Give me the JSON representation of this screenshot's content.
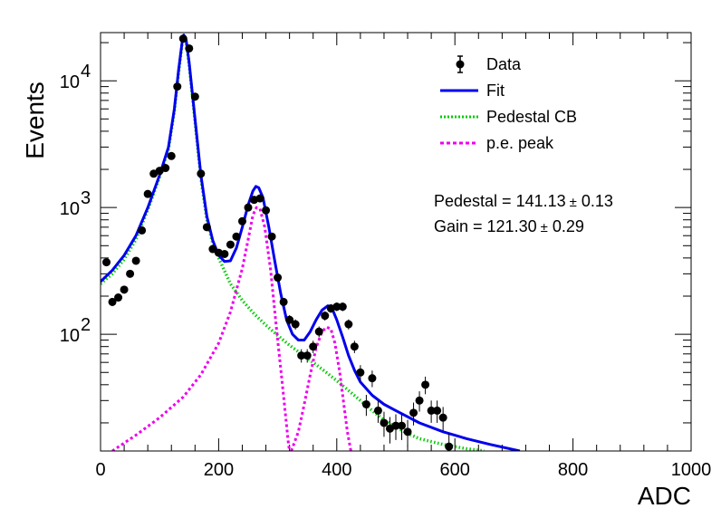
{
  "chart_data": {
    "type": "scatter",
    "title": "",
    "xlabel": "ADC",
    "ylabel": "Events",
    "xlim": [
      0,
      1000
    ],
    "ylim": [
      12,
      24000
    ],
    "yscale": "log",
    "grid": false,
    "legend_position": "top-right",
    "x_ticks": [
      0,
      200,
      400,
      600,
      800,
      1000
    ],
    "x_tick_labels": [
      "0",
      "200",
      "400",
      "600",
      "800",
      "1000"
    ],
    "y_ticks": [
      100,
      1000,
      10000
    ],
    "y_tick_labels": [
      "10",
      "10",
      "10"
    ],
    "y_tick_exponents": [
      "2",
      "3",
      "4"
    ],
    "legend": [
      {
        "label": "Data",
        "marker": "point-errorbar",
        "color": "#000000"
      },
      {
        "label": "Fit",
        "marker": "solid-line",
        "color": "#0000ee"
      },
      {
        "label": "Pedestal CB",
        "marker": "dotted-line",
        "color": "#00cc00"
      },
      {
        "label": "p.e. peak",
        "marker": "dashed-line",
        "color": "#ee00ee"
      }
    ],
    "annotations": [
      {
        "prefix": "Pedestal = 141.13",
        "pm": "±",
        "suffix": " 0.13"
      },
      {
        "prefix": "Gain = 121.30",
        "pm": "±",
        "suffix": " 0.29"
      }
    ],
    "series": [
      {
        "name": "Data",
        "kind": "points",
        "color": "#000000",
        "points": [
          {
            "x": 10,
            "y": 370
          },
          {
            "x": 20,
            "y": 180
          },
          {
            "x": 30,
            "y": 195
          },
          {
            "x": 40,
            "y": 225
          },
          {
            "x": 50,
            "y": 300
          },
          {
            "x": 60,
            "y": 380
          },
          {
            "x": 70,
            "y": 660
          },
          {
            "x": 80,
            "y": 1280
          },
          {
            "x": 90,
            "y": 1850
          },
          {
            "x": 100,
            "y": 1950
          },
          {
            "x": 110,
            "y": 2050
          },
          {
            "x": 120,
            "y": 2550
          },
          {
            "x": 130,
            "y": 9000
          },
          {
            "x": 140,
            "y": 21500
          },
          {
            "x": 150,
            "y": 18000
          },
          {
            "x": 160,
            "y": 7500
          },
          {
            "x": 170,
            "y": 1850
          },
          {
            "x": 180,
            "y": 700
          },
          {
            "x": 190,
            "y": 470
          },
          {
            "x": 200,
            "y": 440
          },
          {
            "x": 210,
            "y": 430
          },
          {
            "x": 220,
            "y": 510
          },
          {
            "x": 230,
            "y": 590
          },
          {
            "x": 240,
            "y": 780
          },
          {
            "x": 250,
            "y": 1000
          },
          {
            "x": 260,
            "y": 1150
          },
          {
            "x": 270,
            "y": 1180
          },
          {
            "x": 280,
            "y": 950
          },
          {
            "x": 290,
            "y": 590
          },
          {
            "x": 300,
            "y": 280
          },
          {
            "x": 310,
            "y": 180
          },
          {
            "x": 320,
            "y": 130
          },
          {
            "x": 330,
            "y": 120
          },
          {
            "x": 340,
            "y": 68
          },
          {
            "x": 350,
            "y": 68
          },
          {
            "x": 360,
            "y": 80
          },
          {
            "x": 370,
            "y": 105
          },
          {
            "x": 380,
            "y": 140
          },
          {
            "x": 390,
            "y": 160
          },
          {
            "x": 400,
            "y": 165
          },
          {
            "x": 410,
            "y": 165
          },
          {
            "x": 420,
            "y": 120
          },
          {
            "x": 430,
            "y": 80
          },
          {
            "x": 440,
            "y": 50
          },
          {
            "x": 450,
            "y": 28
          },
          {
            "x": 460,
            "y": 45
          },
          {
            "x": 470,
            "y": 25
          },
          {
            "x": 480,
            "y": 20
          },
          {
            "x": 490,
            "y": 18
          },
          {
            "x": 500,
            "y": 19
          },
          {
            "x": 510,
            "y": 19
          },
          {
            "x": 520,
            "y": 17
          },
          {
            "x": 530,
            "y": 24
          },
          {
            "x": 540,
            "y": 30
          },
          {
            "x": 550,
            "y": 40
          },
          {
            "x": 560,
            "y": 25
          },
          {
            "x": 570,
            "y": 25
          },
          {
            "x": 580,
            "y": 22
          },
          {
            "x": 590,
            "y": 13
          }
        ]
      },
      {
        "name": "Fit",
        "kind": "line",
        "color": "#0000ee",
        "points": [
          {
            "x": 0,
            "y": 260
          },
          {
            "x": 20,
            "y": 320
          },
          {
            "x": 40,
            "y": 420
          },
          {
            "x": 60,
            "y": 600
          },
          {
            "x": 80,
            "y": 1000
          },
          {
            "x": 100,
            "y": 1800
          },
          {
            "x": 115,
            "y": 3000
          },
          {
            "x": 125,
            "y": 6000
          },
          {
            "x": 132,
            "y": 12000
          },
          {
            "x": 138,
            "y": 20000
          },
          {
            "x": 141,
            "y": 23000
          },
          {
            "x": 145,
            "y": 21000
          },
          {
            "x": 150,
            "y": 14000
          },
          {
            "x": 160,
            "y": 5000
          },
          {
            "x": 170,
            "y": 1800
          },
          {
            "x": 180,
            "y": 850
          },
          {
            "x": 190,
            "y": 550
          },
          {
            "x": 200,
            "y": 420
          },
          {
            "x": 210,
            "y": 375
          },
          {
            "x": 220,
            "y": 380
          },
          {
            "x": 230,
            "y": 480
          },
          {
            "x": 240,
            "y": 700
          },
          {
            "x": 250,
            "y": 1050
          },
          {
            "x": 258,
            "y": 1350
          },
          {
            "x": 263,
            "y": 1470
          },
          {
            "x": 268,
            "y": 1430
          },
          {
            "x": 275,
            "y": 1200
          },
          {
            "x": 285,
            "y": 700
          },
          {
            "x": 295,
            "y": 380
          },
          {
            "x": 305,
            "y": 210
          },
          {
            "x": 315,
            "y": 130
          },
          {
            "x": 325,
            "y": 100
          },
          {
            "x": 335,
            "y": 90
          },
          {
            "x": 345,
            "y": 90
          },
          {
            "x": 355,
            "y": 105
          },
          {
            "x": 365,
            "y": 130
          },
          {
            "x": 375,
            "y": 155
          },
          {
            "x": 385,
            "y": 168
          },
          {
            "x": 392,
            "y": 160
          },
          {
            "x": 400,
            "y": 130
          },
          {
            "x": 410,
            "y": 95
          },
          {
            "x": 420,
            "y": 68
          },
          {
            "x": 430,
            "y": 52
          },
          {
            "x": 440,
            "y": 42
          },
          {
            "x": 460,
            "y": 33
          },
          {
            "x": 480,
            "y": 28
          },
          {
            "x": 500,
            "y": 25
          },
          {
            "x": 540,
            "y": 20
          },
          {
            "x": 580,
            "y": 17
          },
          {
            "x": 620,
            "y": 15
          },
          {
            "x": 660,
            "y": 13.5
          },
          {
            "x": 710,
            "y": 12
          }
        ]
      },
      {
        "name": "Pedestal CB",
        "kind": "line",
        "color": "#00cc00",
        "points": [
          {
            "x": 0,
            "y": 250
          },
          {
            "x": 20,
            "y": 300
          },
          {
            "x": 40,
            "y": 390
          },
          {
            "x": 60,
            "y": 560
          },
          {
            "x": 80,
            "y": 960
          },
          {
            "x": 100,
            "y": 1750
          },
          {
            "x": 115,
            "y": 2900
          },
          {
            "x": 125,
            "y": 5800
          },
          {
            "x": 132,
            "y": 11500
          },
          {
            "x": 138,
            "y": 19500
          },
          {
            "x": 141,
            "y": 22500
          },
          {
            "x": 145,
            "y": 20500
          },
          {
            "x": 150,
            "y": 13500
          },
          {
            "x": 160,
            "y": 4800
          },
          {
            "x": 170,
            "y": 1700
          },
          {
            "x": 180,
            "y": 800
          },
          {
            "x": 190,
            "y": 520
          },
          {
            "x": 200,
            "y": 400
          },
          {
            "x": 220,
            "y": 250
          },
          {
            "x": 240,
            "y": 185
          },
          {
            "x": 260,
            "y": 145
          },
          {
            "x": 280,
            "y": 118
          },
          {
            "x": 300,
            "y": 98
          },
          {
            "x": 320,
            "y": 82
          },
          {
            "x": 340,
            "y": 70
          },
          {
            "x": 360,
            "y": 60
          },
          {
            "x": 380,
            "y": 51
          },
          {
            "x": 400,
            "y": 43
          },
          {
            "x": 420,
            "y": 36
          },
          {
            "x": 440,
            "y": 30
          },
          {
            "x": 460,
            "y": 25
          },
          {
            "x": 480,
            "y": 21
          },
          {
            "x": 500,
            "y": 18.5
          },
          {
            "x": 520,
            "y": 16.5
          },
          {
            "x": 540,
            "y": 15
          },
          {
            "x": 580,
            "y": 13.5
          },
          {
            "x": 620,
            "y": 12.5
          },
          {
            "x": 650,
            "y": 12
          }
        ]
      },
      {
        "name": "p.e. peak",
        "kind": "line",
        "color": "#ee00ee",
        "points": [
          {
            "x": 20,
            "y": 12
          },
          {
            "x": 60,
            "y": 16
          },
          {
            "x": 100,
            "y": 22
          },
          {
            "x": 140,
            "y": 32
          },
          {
            "x": 170,
            "y": 48
          },
          {
            "x": 200,
            "y": 85
          },
          {
            "x": 220,
            "y": 150
          },
          {
            "x": 240,
            "y": 330
          },
          {
            "x": 250,
            "y": 560
          },
          {
            "x": 258,
            "y": 870
          },
          {
            "x": 264,
            "y": 1000
          },
          {
            "x": 270,
            "y": 980
          },
          {
            "x": 278,
            "y": 700
          },
          {
            "x": 288,
            "y": 320
          },
          {
            "x": 298,
            "y": 110
          },
          {
            "x": 308,
            "y": 40
          },
          {
            "x": 318,
            "y": 14
          },
          {
            "x": 320,
            "y": 12
          }
        ]
      },
      {
        "name": "p.e. peak",
        "kind": "line",
        "color": "#ee00ee",
        "points": [
          {
            "x": 323,
            "y": 12
          },
          {
            "x": 335,
            "y": 17
          },
          {
            "x": 345,
            "y": 28
          },
          {
            "x": 355,
            "y": 48
          },
          {
            "x": 365,
            "y": 78
          },
          {
            "x": 375,
            "y": 105
          },
          {
            "x": 383,
            "y": 114
          },
          {
            "x": 390,
            "y": 110
          },
          {
            "x": 397,
            "y": 85
          },
          {
            "x": 405,
            "y": 50
          },
          {
            "x": 412,
            "y": 28
          },
          {
            "x": 418,
            "y": 17
          },
          {
            "x": 424,
            "y": 12
          }
        ]
      }
    ]
  }
}
